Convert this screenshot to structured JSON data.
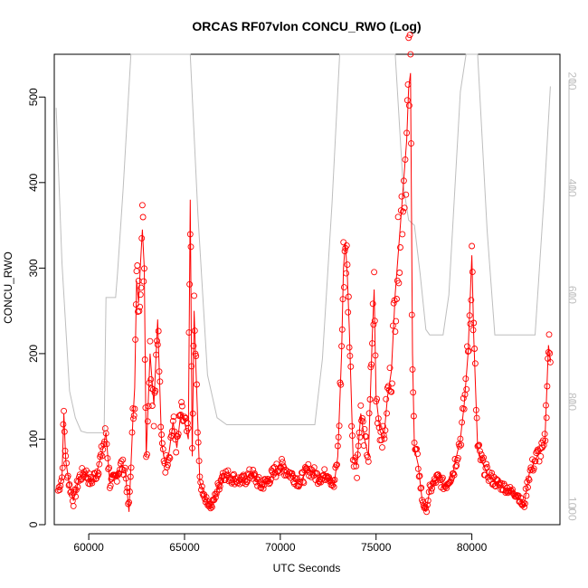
{
  "chart_data": {
    "type": "line",
    "title": "ORCAS RF07vlon CONCU_RWO (Log)",
    "xlabel": "UTC Seconds",
    "ylabel": "CONCU_RWO",
    "xlim": [
      58200,
      84600
    ],
    "ylim": [
      0,
      550
    ],
    "x_ticks": [
      60000,
      65000,
      70000,
      75000,
      80000
    ],
    "y_ticks": [
      0,
      100,
      200,
      300,
      400,
      500
    ],
    "y2_ticks": [
      200,
      400,
      600,
      800,
      1000
    ],
    "y2lim": [
      1030,
      150
    ],
    "y2_reversed": true,
    "grid": false,
    "legend": "none",
    "colors": {
      "series": "#ff0000",
      "secondary": "#bebebe",
      "axis": "#000000",
      "secondary_axis": "#bebebe"
    },
    "series": [
      {
        "marker": "open-circle",
        "points": [
          [
            58400,
            40
          ],
          [
            58600,
            55
          ],
          [
            58700,
            130
          ],
          [
            58800,
            75
          ],
          [
            59000,
            45
          ],
          [
            59200,
            28
          ],
          [
            59500,
            55
          ],
          [
            59800,
            62
          ],
          [
            60100,
            50
          ],
          [
            60400,
            60
          ],
          [
            60700,
            85
          ],
          [
            60900,
            108
          ],
          [
            61100,
            48
          ],
          [
            61400,
            55
          ],
          [
            61700,
            70
          ],
          [
            61900,
            65
          ],
          [
            62100,
            15
          ],
          [
            62300,
            120
          ],
          [
            62400,
            160
          ],
          [
            62500,
            285
          ],
          [
            62600,
            260
          ],
          [
            62700,
            305
          ],
          [
            62800,
            345
          ],
          [
            62900,
            300
          ],
          [
            63000,
            80
          ],
          [
            63200,
            200
          ],
          [
            63400,
            140
          ],
          [
            63600,
            240
          ],
          [
            63800,
            95
          ],
          [
            64000,
            70
          ],
          [
            64200,
            85
          ],
          [
            64400,
            120
          ],
          [
            64600,
            90
          ],
          [
            64800,
            130
          ],
          [
            65000,
            120
          ],
          [
            65200,
            100
          ],
          [
            65300,
            380
          ],
          [
            65400,
            80
          ],
          [
            65500,
            250
          ],
          [
            65600,
            180
          ],
          [
            65800,
            50
          ],
          [
            66100,
            30
          ],
          [
            66400,
            20
          ],
          [
            66700,
            40
          ],
          [
            67000,
            60
          ],
          [
            67500,
            55
          ],
          [
            68000,
            50
          ],
          [
            68500,
            60
          ],
          [
            69000,
            45
          ],
          [
            69500,
            55
          ],
          [
            70000,
            70
          ],
          [
            70500,
            60
          ],
          [
            71000,
            50
          ],
          [
            71500,
            65
          ],
          [
            72000,
            55
          ],
          [
            72500,
            60
          ],
          [
            72800,
            45
          ],
          [
            73000,
            80
          ],
          [
            73200,
            200
          ],
          [
            73300,
            300
          ],
          [
            73400,
            330
          ],
          [
            73500,
            290
          ],
          [
            73600,
            230
          ],
          [
            73800,
            80
          ],
          [
            74000,
            70
          ],
          [
            74200,
            130
          ],
          [
            74400,
            100
          ],
          [
            74600,
            80
          ],
          [
            74800,
            220
          ],
          [
            74900,
            275
          ],
          [
            75000,
            150
          ],
          [
            75200,
            110
          ],
          [
            75400,
            100
          ],
          [
            75600,
            150
          ],
          [
            75800,
            180
          ],
          [
            76000,
            270
          ],
          [
            76300,
            360
          ],
          [
            76600,
            450
          ],
          [
            76700,
            510
          ],
          [
            76800,
            528
          ],
          [
            76900,
            200
          ],
          [
            77000,
            90
          ],
          [
            77200,
            70
          ],
          [
            77400,
            30
          ],
          [
            77600,
            15
          ],
          [
            77800,
            40
          ],
          [
            78200,
            55
          ],
          [
            78600,
            45
          ],
          [
            79000,
            60
          ],
          [
            79400,
            100
          ],
          [
            79600,
            140
          ],
          [
            79800,
            200
          ],
          [
            80000,
            315
          ],
          [
            80100,
            220
          ],
          [
            80300,
            90
          ],
          [
            80500,
            75
          ],
          [
            80800,
            60
          ],
          [
            81200,
            50
          ],
          [
            81600,
            45
          ],
          [
            82000,
            40
          ],
          [
            82400,
            35
          ],
          [
            82700,
            20
          ],
          [
            83000,
            60
          ],
          [
            83400,
            80
          ],
          [
            83800,
            90
          ],
          [
            83900,
            150
          ],
          [
            84000,
            210
          ],
          [
            84100,
            190
          ]
        ]
      },
      {
        "axis": "right",
        "points": [
          [
            58300,
            250
          ],
          [
            58600,
            540
          ],
          [
            59000,
            780
          ],
          [
            59300,
            830
          ],
          [
            59600,
            855
          ],
          [
            59900,
            858
          ],
          [
            60500,
            858
          ],
          [
            60800,
            858
          ],
          [
            60900,
            605
          ],
          [
            61400,
            605
          ],
          [
            61500,
            560
          ],
          [
            61800,
            400
          ],
          [
            62200,
            150
          ],
          [
            65300,
            150
          ],
          [
            65700,
            450
          ],
          [
            66200,
            750
          ],
          [
            66700,
            830
          ],
          [
            67200,
            843
          ],
          [
            68000,
            843
          ],
          [
            70000,
            843
          ],
          [
            71800,
            843
          ],
          [
            72200,
            720
          ],
          [
            72700,
            430
          ],
          [
            73100,
            150
          ],
          [
            76000,
            150
          ],
          [
            76400,
            390
          ],
          [
            76700,
            460
          ],
          [
            77000,
            470
          ],
          [
            77300,
            560
          ],
          [
            77600,
            665
          ],
          [
            77800,
            675
          ],
          [
            78500,
            675
          ],
          [
            78800,
            600
          ],
          [
            79400,
            220
          ],
          [
            79700,
            150
          ],
          [
            80300,
            150
          ],
          [
            80800,
            480
          ],
          [
            81200,
            675
          ],
          [
            82000,
            675
          ],
          [
            83300,
            675
          ],
          [
            83800,
            400
          ],
          [
            84100,
            210
          ]
        ]
      }
    ]
  }
}
